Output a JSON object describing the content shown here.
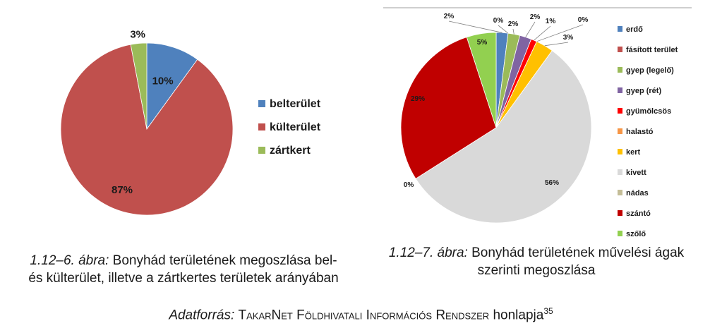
{
  "chart_data": [
    {
      "type": "pie",
      "categories": [
        "belterület",
        "külterület",
        "zártkert"
      ],
      "values": [
        10,
        87,
        3
      ],
      "data_labels": [
        "10%",
        "87%",
        "3%"
      ],
      "colors": [
        "#4f81bd",
        "#c0504d",
        "#9bbb59"
      ],
      "legend_position": "right",
      "caption_prefix": "1.12–6. ábra:",
      "caption_line1": "Bonyhád területének megoszlása bel-",
      "caption_line2": "és külterület, illetve a zártkertes területek arányában"
    },
    {
      "type": "pie",
      "categories": [
        "erdő",
        "fásított terület",
        "gyep (legelő)",
        "gyep (rét)",
        "gyümölcsös",
        "halastó",
        "kert",
        "kivett",
        "nádas",
        "szántó",
        "szőlő"
      ],
      "values": [
        2,
        0,
        2,
        2,
        1,
        0,
        3,
        56,
        0,
        29,
        5
      ],
      "data_labels": [
        "2%",
        "0%",
        "2%",
        "2%",
        "1%",
        "0%",
        "3%",
        "56%",
        "0%",
        "29%",
        "5%"
      ],
      "colors": [
        "#4f81bd",
        "#c0504d",
        "#9bbb59",
        "#8064a2",
        "#ff0000",
        "#f79646",
        "#ffc000",
        "#d9d9d9",
        "#c4bd97",
        "#c00000",
        "#92d050"
      ],
      "legend_position": "right",
      "caption_prefix": "1.12–7. ábra:",
      "caption_line1": "Bonyhád területének művelési ágak",
      "caption_line2": "szerinti megoszlása"
    }
  ],
  "source": {
    "prefix": "Adatforrás:",
    "name": "TakarNet Földhivatali Információs Rendszer",
    "suffix": "honlapja",
    "footnote": "35"
  }
}
